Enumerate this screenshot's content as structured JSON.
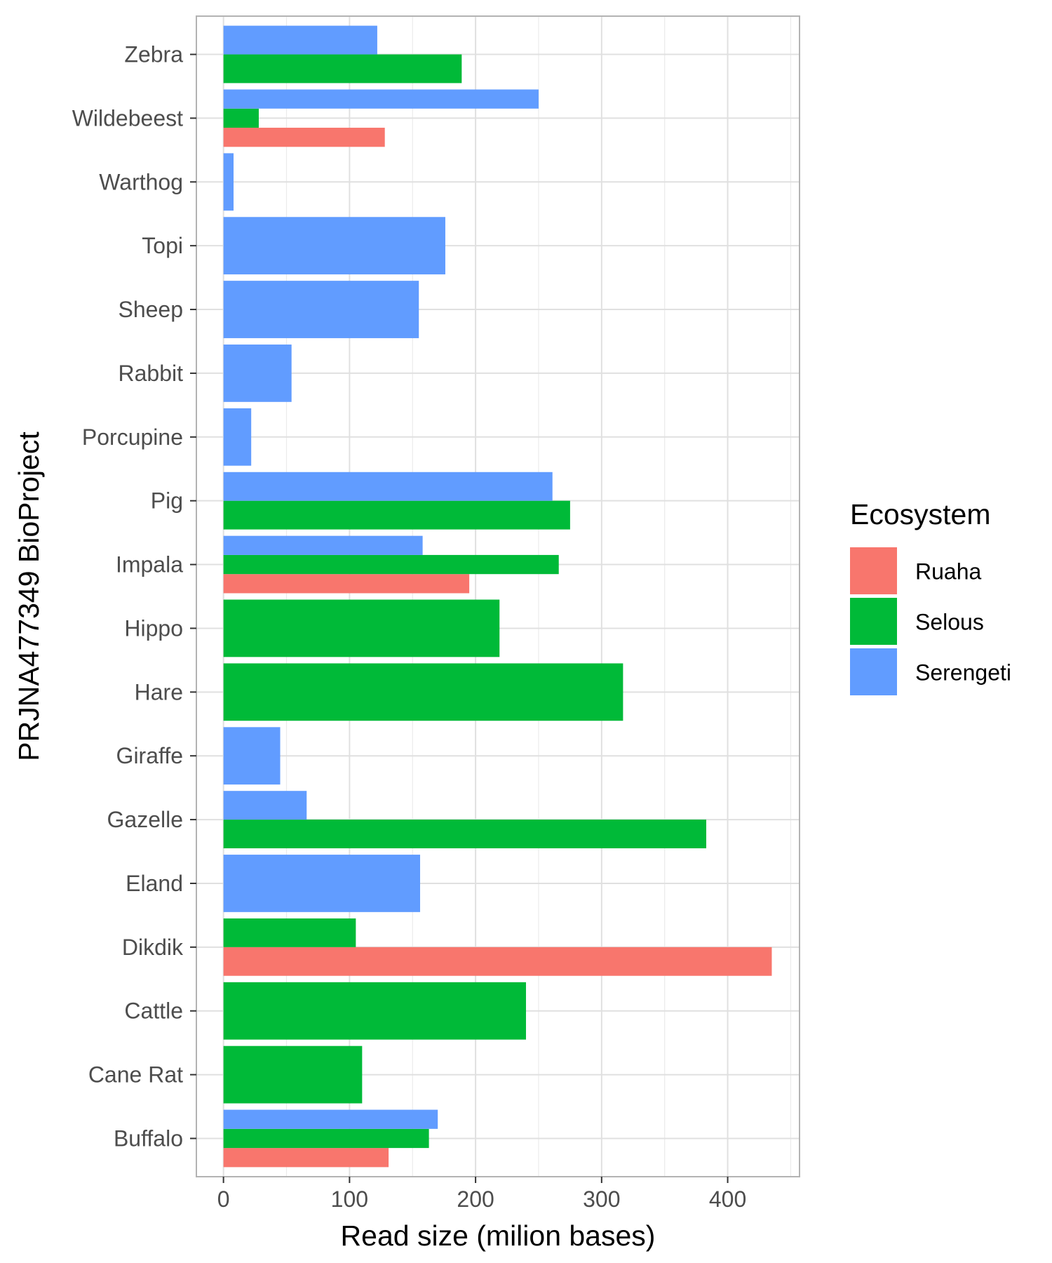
{
  "chart_data": {
    "type": "bar",
    "orientation": "horizontal",
    "position": "dodge",
    "xlabel": "Read size (milion bases)",
    "ylabel": "PRJNA477349 BioProject",
    "xlim": [
      -21.5,
      457
    ],
    "xticks": [
      0,
      100,
      200,
      300,
      400
    ],
    "grid": true,
    "legend_position": "right",
    "legend_title": "Ecosystem",
    "categories": [
      "Buffalo",
      "Cane Rat",
      "Cattle",
      "Dikdik",
      "Eland",
      "Gazelle",
      "Giraffe",
      "Hare",
      "Hippo",
      "Impala",
      "Pig",
      "Porcupine",
      "Rabbit",
      "Sheep",
      "Topi",
      "Warthog",
      "Wildebeest",
      "Zebra"
    ],
    "series": [
      {
        "name": "Ruaha",
        "color": "#F8766D",
        "values": [
          131,
          null,
          null,
          435,
          null,
          null,
          null,
          null,
          null,
          195,
          null,
          null,
          null,
          null,
          null,
          null,
          128,
          null
        ]
      },
      {
        "name": "Selous",
        "color": "#00BA38",
        "values": [
          163,
          110,
          240,
          105,
          null,
          383,
          null,
          317,
          219,
          266,
          275,
          null,
          null,
          null,
          null,
          null,
          28,
          189
        ]
      },
      {
        "name": "Serengeti",
        "color": "#619CFF",
        "values": [
          170,
          null,
          null,
          null,
          156,
          66,
          45,
          null,
          null,
          158,
          261,
          22,
          54,
          155,
          176,
          8,
          250,
          122
        ]
      }
    ]
  }
}
